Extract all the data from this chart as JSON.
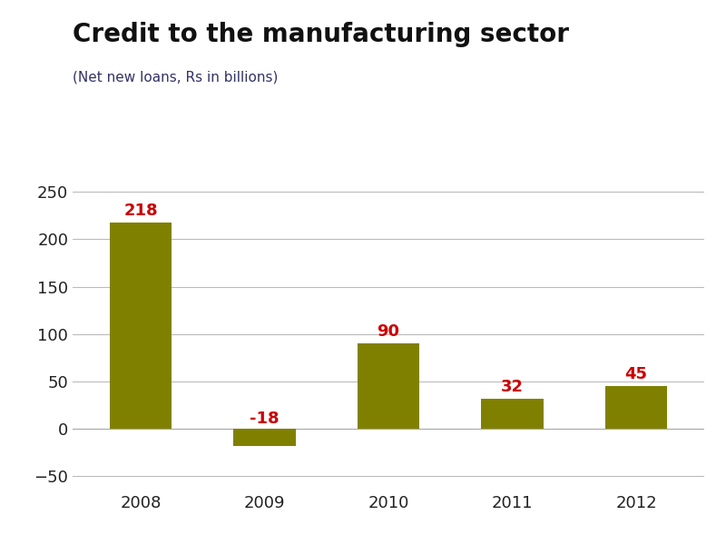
{
  "title": "Credit to the manufacturing sector",
  "subtitle": "(Net new loans, Rs in billions)",
  "categories": [
    "2008",
    "2009",
    "2010",
    "2011",
    "2012"
  ],
  "values": [
    218,
    -18,
    90,
    32,
    45
  ],
  "bar_color": "#808000",
  "label_color": "#cc0000",
  "title_fontsize": 20,
  "subtitle_fontsize": 11,
  "label_fontsize": 13,
  "tick_fontsize": 13,
  "ylim": [
    -65,
    280
  ],
  "yticks": [
    -50,
    0,
    50,
    100,
    150,
    200,
    250
  ],
  "background_color": "#ffffff",
  "grid_color": "#bbbbbb"
}
